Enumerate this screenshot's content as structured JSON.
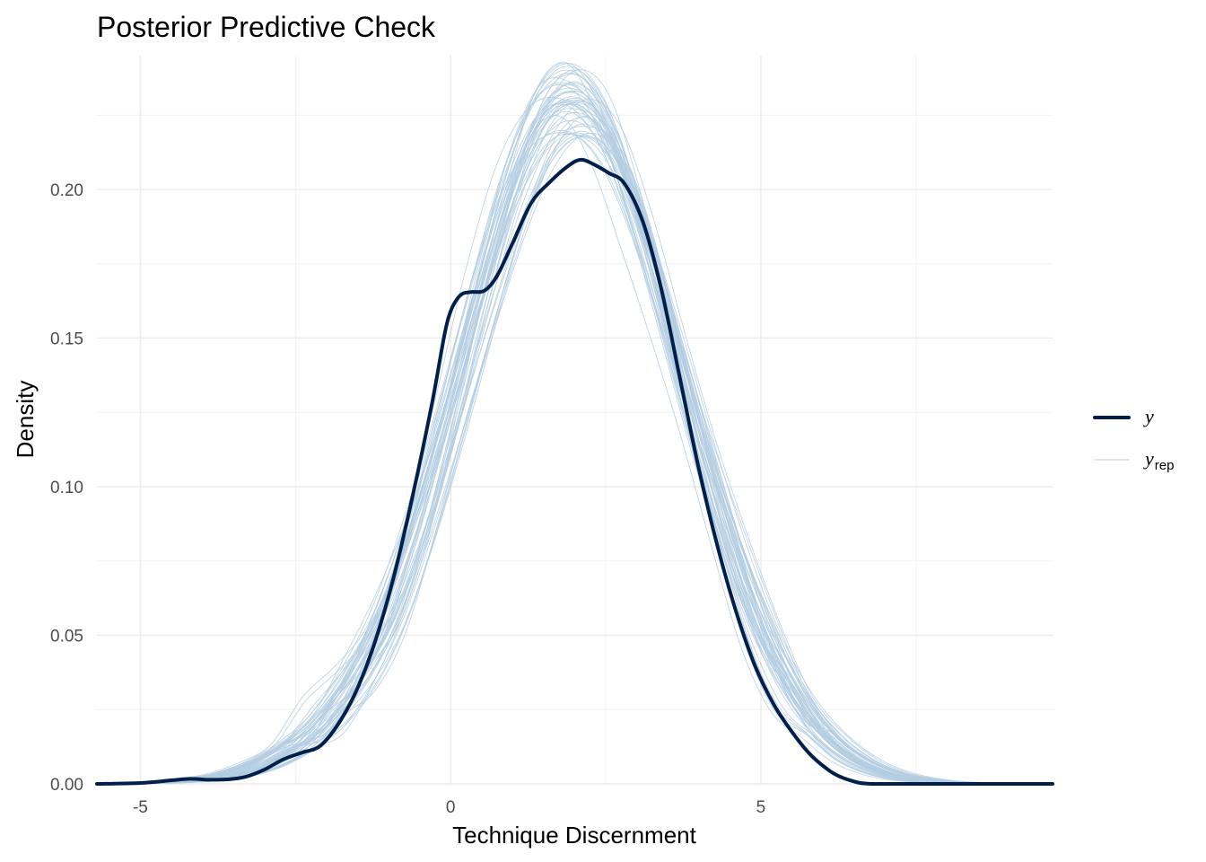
{
  "chart_data": {
    "type": "line",
    "title": "Posterior Predictive Check",
    "xlabel": "Technique Discernment",
    "ylabel": "Density",
    "xlim": [
      -5.7,
      9.7
    ],
    "ylim": [
      0,
      0.245
    ],
    "x_ticks": [
      -5,
      0,
      5
    ],
    "x_tick_labels": [
      "-5",
      "0",
      "5"
    ],
    "y_ticks": [
      0,
      0.05,
      0.1,
      0.15,
      0.2
    ],
    "y_tick_labels": [
      "0.00",
      "0.05",
      "0.10",
      "0.15",
      "0.20"
    ],
    "grid": true,
    "legend_position": "right",
    "legend": [
      {
        "key": "y",
        "label": "y",
        "sub": "",
        "color": "#011f4b"
      },
      {
        "key": "yrep",
        "label": "y",
        "sub": "rep",
        "color": "#b3cde0"
      }
    ],
    "series": [
      {
        "name": "y",
        "color": "#011f4b",
        "x": [
          -5.7,
          -5.0,
          -4.5,
          -4.2,
          -3.9,
          -3.6,
          -3.3,
          -3.0,
          -2.7,
          -2.4,
          -2.1,
          -1.8,
          -1.5,
          -1.2,
          -0.9,
          -0.6,
          -0.3,
          -0.1,
          0.0,
          0.1,
          0.2,
          0.35,
          0.55,
          0.75,
          1.0,
          1.3,
          1.6,
          1.9,
          2.1,
          2.3,
          2.55,
          2.8,
          3.1,
          3.4,
          3.7,
          4.0,
          4.3,
          4.6,
          4.9,
          5.2,
          5.5,
          5.8,
          6.1,
          6.3,
          6.5,
          6.6,
          6.7,
          6.85,
          7.2,
          8.0,
          9.7
        ],
        "y": [
          0.0,
          0.0003,
          0.0012,
          0.0017,
          0.0014,
          0.0015,
          0.0024,
          0.0048,
          0.0082,
          0.0105,
          0.0128,
          0.0205,
          0.0322,
          0.049,
          0.071,
          0.098,
          0.128,
          0.151,
          0.159,
          0.163,
          0.165,
          0.1655,
          0.166,
          0.171,
          0.182,
          0.1955,
          0.2025,
          0.208,
          0.21,
          0.2085,
          0.2055,
          0.202,
          0.189,
          0.166,
          0.136,
          0.106,
          0.08,
          0.058,
          0.04,
          0.027,
          0.0175,
          0.0098,
          0.0045,
          0.0022,
          0.0008,
          0.0003,
          0.0001,
          0.0,
          0.0,
          0.0,
          0.0
        ]
      },
      {
        "name": "y_rep",
        "color": "#b3cde0",
        "x": [
          -5.7,
          -5.0,
          -4.5,
          -4.0,
          -3.5,
          -3.0,
          -2.5,
          -2.0,
          -1.5,
          -1.0,
          -0.5,
          0.0,
          0.5,
          1.0,
          1.5,
          2.0,
          2.5,
          3.0,
          3.5,
          4.0,
          4.5,
          5.0,
          5.5,
          6.0,
          6.5,
          7.0,
          7.5,
          8.0,
          8.5,
          9.0,
          9.7
        ],
        "y": [
          0.0,
          0.0002,
          0.0006,
          0.0014,
          0.0032,
          0.0068,
          0.0128,
          0.0222,
          0.036,
          0.0565,
          0.087,
          0.124,
          0.163,
          0.199,
          0.2235,
          0.2305,
          0.2195,
          0.1915,
          0.1545,
          0.1155,
          0.0805,
          0.0515,
          0.0305,
          0.0166,
          0.0082,
          0.0036,
          0.0014,
          0.0005,
          0.0002,
          0.0001,
          0.0
        ],
        "draws": 50
      }
    ]
  }
}
